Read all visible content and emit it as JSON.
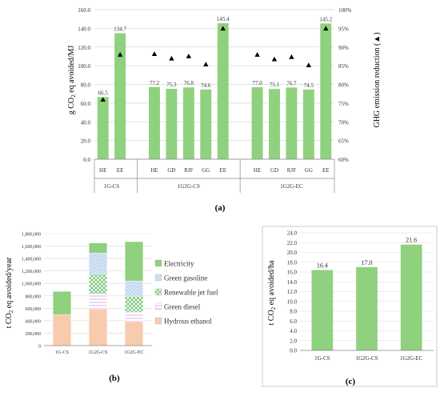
{
  "panels": {
    "a": "(a)",
    "b": "(b)",
    "c": "(c)"
  },
  "colors": {
    "bar_green": "#8fd17e",
    "electricity": "#8fd17e",
    "green_gasoline": "#bcd3ee",
    "renewable_jet_fuel": "#9ed48f",
    "green_diesel": "#e7c9ef",
    "hydrous_ethanol": "#f8cbad",
    "grid": "#d9d9d9",
    "axis": "#888888",
    "marker": "#000000"
  },
  "chart_data": [
    {
      "id": "a",
      "type": "bar",
      "title": "",
      "ylabel": "g CO2 eq avoided/MJ",
      "y2label": "GHG emission reduction (▲)",
      "ylim": [
        0,
        160
      ],
      "y_ticks": [
        "0.0",
        "20.0",
        "40.0",
        "60.0",
        "80.0",
        "100.0",
        "120.0",
        "140.0",
        "160.0"
      ],
      "y2lim": [
        60,
        100
      ],
      "y2_ticks": [
        "60%",
        "65%",
        "70%",
        "75%",
        "80%",
        "85%",
        "90%",
        "95%",
        "100%"
      ],
      "groups": [
        {
          "name": "1G-CS",
          "categories": [
            "HE",
            "EE"
          ],
          "values": [
            66.5,
            134.7
          ],
          "value_labels": [
            "66.5",
            "134.7"
          ],
          "reduction_pct": [
            76,
            88
          ]
        },
        {
          "name": "1G2G-CS",
          "categories": [
            "HE",
            "GD",
            "RJF",
            "GG",
            "EE"
          ],
          "values": [
            77.2,
            75.3,
            76.8,
            74.6,
            145.4
          ],
          "value_labels": [
            "77.2",
            "75.3",
            "76.8",
            "74.6",
            "145.4"
          ],
          "reduction_pct": [
            88.2,
            87,
            87.6,
            85.4,
            95
          ]
        },
        {
          "name": "1G2G-EC",
          "categories": [
            "HE",
            "GD",
            "RJF",
            "GG",
            "EE"
          ],
          "values": [
            77.0,
            75.1,
            76.7,
            74.5,
            145.2
          ],
          "value_labels": [
            "77.0",
            "75.1",
            "76.7",
            "74.5",
            "145.2"
          ],
          "reduction_pct": [
            88,
            86.8,
            87.4,
            85.2,
            95
          ]
        }
      ]
    },
    {
      "id": "b",
      "type": "bar",
      "stacked": true,
      "ylabel": "t CO2 eq avoided/year",
      "ylim": [
        0,
        1800000
      ],
      "y_ticks": [
        "0",
        "200,000",
        "400,000",
        "600,000",
        "800,000",
        "1,000,000",
        "1,200,000",
        "1,400,000",
        "1,600,000",
        "1,800,000"
      ],
      "categories": [
        "1G-CS",
        "1G2G-CS",
        "1G2G-EC"
      ],
      "series": [
        {
          "name": "Hydrous ethanol",
          "values": [
            500000,
            580000,
            380000
          ]
        },
        {
          "name": "Green diesel",
          "values": [
            0,
            250000,
            160000
          ]
        },
        {
          "name": "Renewable jet fuel",
          "values": [
            0,
            320000,
            250000
          ]
        },
        {
          "name": "Green gasoline",
          "values": [
            0,
            340000,
            250000
          ]
        },
        {
          "name": "Electricity",
          "values": [
            370000,
            160000,
            630000
          ]
        }
      ],
      "legend": [
        "Electricity",
        "Green gasoline",
        "Renewable jet fuel",
        "Green diesel",
        "Hydrous ethanol"
      ],
      "legend_position": "right"
    },
    {
      "id": "c",
      "type": "bar",
      "ylabel": "t CO2 eq avoided/ha",
      "ylim": [
        0,
        24
      ],
      "y_ticks": [
        "0.0",
        "2.0",
        "4.0",
        "6.0",
        "8.0",
        "10.0",
        "12.0",
        "14.0",
        "16.0",
        "18.0",
        "20.0",
        "22.0",
        "24.0"
      ],
      "categories": [
        "1G-CS",
        "1G2G-CS",
        "1G2G-EC"
      ],
      "values": [
        16.4,
        17.0,
        21.6
      ],
      "value_labels": [
        "16.4",
        "17.0",
        "21.6"
      ]
    }
  ]
}
